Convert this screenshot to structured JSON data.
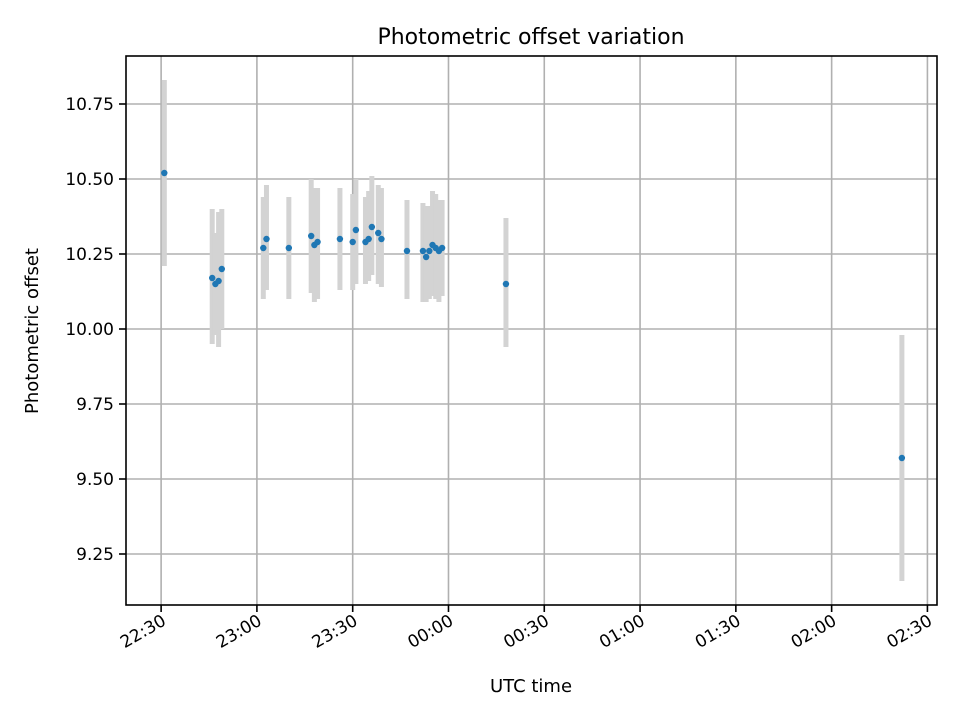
{
  "chart_data": {
    "type": "scatter",
    "title": "Photometric offset variation",
    "xlabel": "UTC time",
    "ylabel": "Photometric offset",
    "x_reference_date_note": "",
    "xlim": [
      "22:19",
      "02:33"
    ],
    "ylim": [
      9.08,
      10.91
    ],
    "grid": true,
    "x_ticks": [
      {
        "time": "22:30",
        "label": "22:30"
      },
      {
        "time": "23:00",
        "label": "23:00"
      },
      {
        "time": "23:30",
        "label": "23:30"
      },
      {
        "time": "00:00",
        "label": "00:00"
      },
      {
        "time": "00:30",
        "label": "00:30"
      },
      {
        "time": "01:00",
        "label": "01:00"
      },
      {
        "time": "01:30",
        "label": "01:30"
      },
      {
        "time": "02:00",
        "label": "02:00"
      },
      {
        "time": "02:30",
        "label": "02:30"
      }
    ],
    "y_ticks": [
      {
        "value": 9.25,
        "label": "9.25"
      },
      {
        "value": 9.5,
        "label": "9.50"
      },
      {
        "value": 9.75,
        "label": "9.75"
      },
      {
        "value": 10.0,
        "label": "10.00"
      },
      {
        "value": 10.25,
        "label": "10.25"
      },
      {
        "value": 10.5,
        "label": "10.50"
      },
      {
        "value": 10.75,
        "label": "10.75"
      }
    ],
    "series": [
      {
        "marker_color": "#1f77b4",
        "errorbar_color": "#d3d3d3",
        "points": [
          {
            "x": "22:31",
            "y": 10.52,
            "ylow": 10.21,
            "yhigh": 10.83
          },
          {
            "x": "22:46",
            "y": 10.17,
            "ylow": 9.95,
            "yhigh": 10.4
          },
          {
            "x": "22:47",
            "y": 10.15,
            "ylow": 9.98,
            "yhigh": 10.32
          },
          {
            "x": "22:48",
            "y": 10.16,
            "ylow": 9.94,
            "yhigh": 10.39
          },
          {
            "x": "22:49",
            "y": 10.2,
            "ylow": 10.0,
            "yhigh": 10.4
          },
          {
            "x": "23:02",
            "y": 10.27,
            "ylow": 10.1,
            "yhigh": 10.44
          },
          {
            "x": "23:03",
            "y": 10.3,
            "ylow": 10.13,
            "yhigh": 10.48
          },
          {
            "x": "23:10",
            "y": 10.27,
            "ylow": 10.1,
            "yhigh": 10.44
          },
          {
            "x": "23:17",
            "y": 10.31,
            "ylow": 10.12,
            "yhigh": 10.5
          },
          {
            "x": "23:18",
            "y": 10.28,
            "ylow": 10.09,
            "yhigh": 10.47
          },
          {
            "x": "23:19",
            "y": 10.29,
            "ylow": 10.1,
            "yhigh": 10.47
          },
          {
            "x": "23:26",
            "y": 10.3,
            "ylow": 10.13,
            "yhigh": 10.47
          },
          {
            "x": "23:30",
            "y": 10.29,
            "ylow": 10.13,
            "yhigh": 10.45
          },
          {
            "x": "23:31",
            "y": 10.33,
            "ylow": 10.15,
            "yhigh": 10.5
          },
          {
            "x": "23:34",
            "y": 10.29,
            "ylow": 10.15,
            "yhigh": 10.44
          },
          {
            "x": "23:35",
            "y": 10.3,
            "ylow": 10.16,
            "yhigh": 10.46
          },
          {
            "x": "23:36",
            "y": 10.34,
            "ylow": 10.18,
            "yhigh": 10.51
          },
          {
            "x": "23:38",
            "y": 10.32,
            "ylow": 10.15,
            "yhigh": 10.48
          },
          {
            "x": "23:39",
            "y": 10.3,
            "ylow": 10.14,
            "yhigh": 10.47
          },
          {
            "x": "23:47",
            "y": 10.26,
            "ylow": 10.1,
            "yhigh": 10.43
          },
          {
            "x": "23:52",
            "y": 10.26,
            "ylow": 10.09,
            "yhigh": 10.42
          },
          {
            "x": "23:53",
            "y": 10.24,
            "ylow": 10.09,
            "yhigh": 10.41
          },
          {
            "x": "23:54",
            "y": 10.26,
            "ylow": 10.1,
            "yhigh": 10.41
          },
          {
            "x": "23:55",
            "y": 10.28,
            "ylow": 10.11,
            "yhigh": 10.46
          },
          {
            "x": "23:56",
            "y": 10.27,
            "ylow": 10.1,
            "yhigh": 10.45
          },
          {
            "x": "23:57",
            "y": 10.26,
            "ylow": 10.09,
            "yhigh": 10.43
          },
          {
            "x": "23:58",
            "y": 10.27,
            "ylow": 10.11,
            "yhigh": 10.43
          },
          {
            "x": "00:18",
            "y": 10.15,
            "ylow": 9.94,
            "yhigh": 10.37
          },
          {
            "x": "02:22",
            "y": 9.57,
            "ylow": 9.16,
            "yhigh": 9.98
          }
        ]
      }
    ]
  }
}
